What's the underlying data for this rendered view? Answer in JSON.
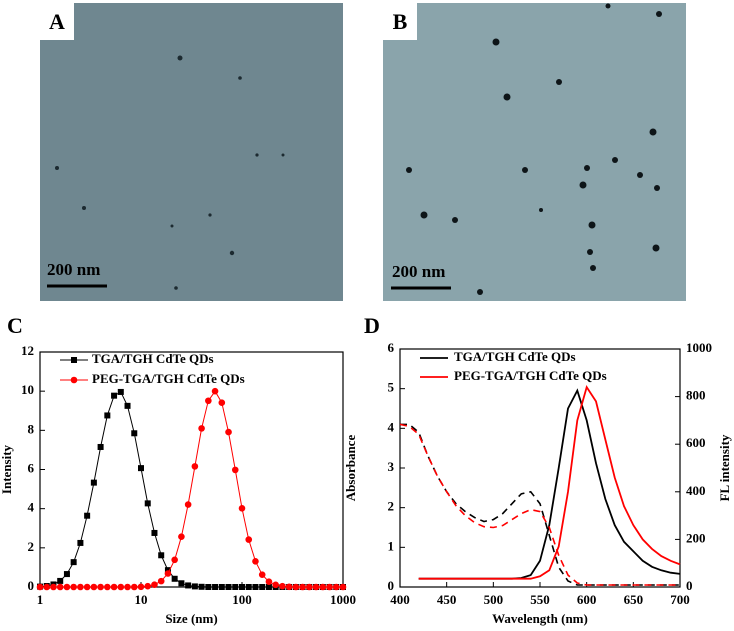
{
  "panels": [
    {
      "label": "A",
      "scale_bar": "200 nm"
    },
    {
      "label": "B",
      "scale_bar": "200 nm"
    }
  ],
  "chart_data": [
    {
      "type": "line",
      "label": "C",
      "xlabel": "Size (nm)",
      "ylabel": "Intensity",
      "log_x": true,
      "xlim": [
        1,
        1000
      ],
      "xticks": [
        1,
        10,
        100,
        1000
      ],
      "ylim": [
        0,
        12
      ],
      "yticks": [
        0,
        2,
        4,
        6,
        8,
        10,
        12
      ],
      "x": [
        1,
        1.166,
        1.359,
        1.585,
        1.848,
        2.154,
        2.512,
        2.929,
        3.415,
        3.981,
        4.642,
        5.412,
        6.31,
        7.356,
        8.577,
        10,
        11.66,
        13.59,
        15.85,
        18.48,
        21.54,
        25.12,
        29.29,
        34.15,
        39.81,
        46.42,
        54.12,
        63.1,
        73.56,
        85.77,
        100,
        116.6,
        135.9,
        158.5,
        184.8,
        215.4,
        251.2,
        292.9,
        341.5,
        398.1,
        464.2,
        541.2,
        631,
        735.6,
        857.7,
        1000
      ],
      "series": [
        {
          "name": "TGA/TGH CdTe QDs",
          "color": "#000000",
          "marker": "square",
          "values": [
            0.02,
            0.05,
            0.13,
            0.31,
            0.66,
            1.27,
            2.25,
            3.64,
            5.33,
            7.15,
            8.76,
            9.77,
            9.96,
            9.25,
            7.85,
            6.07,
            4.27,
            2.76,
            1.62,
            0.86,
            0.42,
            0.19,
            0.08,
            0.03,
            0.01,
            0,
            0,
            0,
            0,
            0,
            0,
            0,
            0,
            0,
            0,
            0,
            0,
            0,
            0,
            0,
            0,
            0,
            0,
            0,
            0,
            0
          ]
        },
        {
          "name": "PEG-TGA/TGH CdTe QDs",
          "color": "#ff0000",
          "marker": "circle",
          "values": [
            0,
            0,
            0,
            0,
            0,
            0,
            0,
            0,
            0,
            0,
            0,
            0,
            0,
            0,
            0,
            0.01,
            0.04,
            0.12,
            0.3,
            0.69,
            1.39,
            2.57,
            4.21,
            6.16,
            8.1,
            9.51,
            10,
            9.41,
            7.91,
            5.98,
            4.02,
            2.42,
            1.31,
            0.63,
            0.27,
            0.11,
            0.04,
            0.01,
            0,
            0,
            0,
            0,
            0,
            0,
            0,
            0
          ]
        }
      ]
    },
    {
      "type": "spectrum",
      "label": "D",
      "xlabel": "Wavelength (nm)",
      "ylabel": "Absorbance",
      "y2label": "FL intensity",
      "xlim": [
        400,
        700
      ],
      "xticks": [
        400,
        450,
        500,
        550,
        600,
        650,
        700
      ],
      "ylim": [
        0,
        6
      ],
      "yticks": [
        0,
        1,
        2,
        3,
        4,
        5,
        6
      ],
      "y2lim": [
        0,
        1000
      ],
      "y2ticks": [
        0,
        200,
        400,
        600,
        800,
        1000
      ],
      "x": [
        400,
        410,
        420,
        430,
        440,
        450,
        460,
        470,
        480,
        490,
        500,
        510,
        520,
        530,
        540,
        550,
        560,
        570,
        580,
        590,
        600,
        610,
        620,
        630,
        640,
        650,
        660,
        670,
        680,
        690,
        700
      ],
      "series": [
        {
          "name": "TGA/TGH CdTe QDs",
          "color": "#000000",
          "absorbance": [
            4.1,
            4.1,
            3.9,
            3.3,
            2.8,
            2.4,
            2.1,
            1.9,
            1.75,
            1.65,
            1.7,
            1.85,
            2.1,
            2.35,
            2.4,
            2.1,
            1.3,
            0.5,
            0.15,
            0.05,
            0.05,
            0.05,
            0.05,
            0.05,
            0.05,
            0.05,
            0.05,
            0.05,
            0.05,
            0.05,
            0.05
          ],
          "fl_intensity": [
            null,
            null,
            35,
            35,
            35,
            35,
            35,
            35,
            35,
            35,
            35,
            35,
            35,
            38,
            50,
            110,
            260,
            500,
            750,
            825,
            700,
            520,
            370,
            260,
            190,
            150,
            110,
            85,
            70,
            60,
            55
          ]
        },
        {
          "name": "PEG-TGA/TGH CdTe QDs",
          "color": "#ff0000",
          "absorbance": [
            4.1,
            4.05,
            3.85,
            3.3,
            2.8,
            2.4,
            2.05,
            1.8,
            1.62,
            1.52,
            1.5,
            1.55,
            1.7,
            1.85,
            1.95,
            1.9,
            1.5,
            0.8,
            0.3,
            0.1,
            0.05,
            0.05,
            0.05,
            0.05,
            0.05,
            0.05,
            0.05,
            0.05,
            0.05,
            0.05,
            0.05
          ],
          "fl_intensity": [
            null,
            null,
            35,
            35,
            35,
            35,
            35,
            35,
            35,
            35,
            35,
            35,
            35,
            35,
            35,
            45,
            70,
            170,
            400,
            700,
            840,
            780,
            620,
            460,
            340,
            260,
            200,
            160,
            130,
            110,
            95
          ]
        }
      ]
    }
  ]
}
